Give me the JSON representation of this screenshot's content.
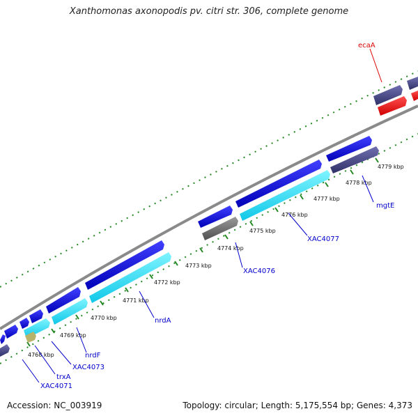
{
  "title": "Xanthomonas axonopodis pv. citri str. 306, complete genome",
  "footer": {
    "accession": "Accession: NC_003919",
    "summary": "Topology: circular; Length: 5,175,554 bp; Genes: 4,373"
  },
  "scale_labels": [
    "4768 kbp",
    "4769 kbp",
    "4770 kbp",
    "4771 kbp",
    "4772 kbp",
    "4773 kbp",
    "4774 kbp",
    "4775 kbp",
    "4776 kbp",
    "4777 kbp",
    "4778 kbp",
    "4779 kbp"
  ],
  "gene_labels": [
    {
      "id": "XAC4071",
      "text": "XAC4071"
    },
    {
      "id": "trxA",
      "text": "trxA"
    },
    {
      "id": "XAC4073",
      "text": "XAC4073"
    },
    {
      "id": "nrdF",
      "text": "nrdF"
    },
    {
      "id": "nrdA",
      "text": "nrdA"
    },
    {
      "id": "XAC4076",
      "text": "XAC4076"
    },
    {
      "id": "XAC4077",
      "text": "XAC4077"
    },
    {
      "id": "mgtE",
      "text": "mgtE"
    },
    {
      "id": "ecaA",
      "text": "ecaA"
    }
  ],
  "colors": {
    "cds_forward": "#1010dd",
    "cds_cyan": "#22e0ff",
    "cds_gray": "#6a6a6a",
    "cds_slate": "#4a4a8a",
    "cds_red": "#ff0a0a",
    "backbone": "#8a8a8a",
    "ticks": "#228822",
    "label": "#0000cc",
    "highlight": "#dd0000"
  }
}
